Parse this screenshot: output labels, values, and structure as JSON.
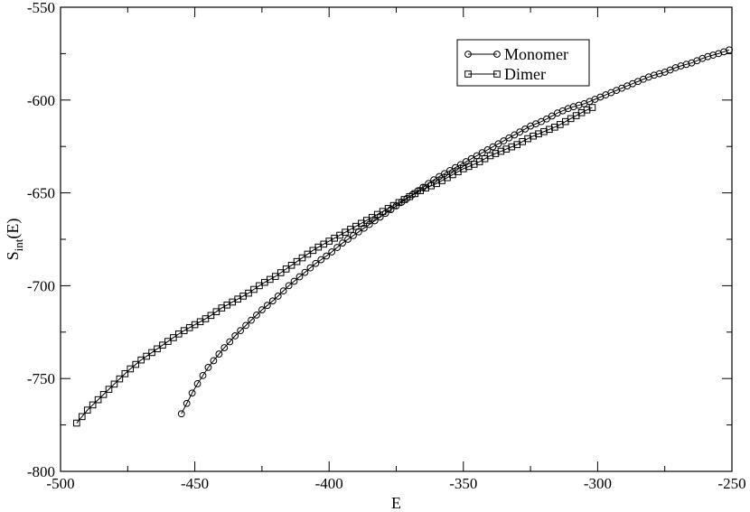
{
  "chart_data": {
    "type": "line",
    "title": "",
    "xlabel": "E",
    "ylabel": "S(E)",
    "ylabel_subscript": "int",
    "xlim": [
      -500,
      -250
    ],
    "ylim": [
      -800,
      -550
    ],
    "xticks": [
      -500,
      -450,
      -400,
      -350,
      -300,
      -250
    ],
    "yticks": [
      -800,
      -750,
      -700,
      -650,
      -600,
      -550
    ],
    "xtick_labels": [
      "-500",
      "-450",
      "-400",
      "-350",
      "-300",
      "-250"
    ],
    "ytick_labels": [
      "-800",
      "-750",
      "-700",
      "-650",
      "-600",
      "-550"
    ],
    "grid": false,
    "legend_position": "top-right",
    "series": [
      {
        "name": "Monomer",
        "marker": "circle",
        "x_start": -455,
        "x_end": -251,
        "x_step": 2,
        "x": [
          -455,
          -450,
          -445,
          -440,
          -435,
          -430,
          -425,
          -420,
          -415,
          -410,
          -405,
          -400,
          -395,
          -390,
          -385,
          -380,
          -375,
          -370,
          -365,
          -360,
          -355,
          -350,
          -345,
          -340,
          -335,
          -330,
          -325,
          -320,
          -315,
          -310,
          -305,
          -300,
          -295,
          -290,
          -285,
          -280,
          -275,
          -270,
          -265,
          -260,
          -255,
          -251
        ],
        "y": [
          -769,
          -755,
          -744,
          -735,
          -727,
          -720,
          -713,
          -707,
          -700,
          -694,
          -688,
          -683,
          -677,
          -672,
          -667,
          -662,
          -657,
          -652,
          -647,
          -642,
          -638,
          -634,
          -630,
          -626,
          -622,
          -618,
          -614,
          -611,
          -607,
          -604,
          -602,
          -599,
          -596,
          -593,
          -590,
          -587,
          -585,
          -582,
          -580,
          -577,
          -575,
          -573
        ]
      },
      {
        "name": "Dimer",
        "marker": "square",
        "x_start": -494,
        "x_end": -302,
        "x_step": 2,
        "x": [
          -494,
          -490,
          -485,
          -480,
          -475,
          -470,
          -465,
          -460,
          -455,
          -450,
          -445,
          -440,
          -435,
          -430,
          -425,
          -420,
          -415,
          -410,
          -405,
          -400,
          -395,
          -390,
          -385,
          -380,
          -375,
          -370,
          -365,
          -360,
          -355,
          -350,
          -345,
          -340,
          -335,
          -330,
          -325,
          -320,
          -315,
          -310,
          -305,
          -302
        ],
        "y": [
          -774,
          -767,
          -760,
          -753,
          -746,
          -740,
          -735,
          -730,
          -725,
          -721,
          -717,
          -712,
          -708,
          -704,
          -699,
          -695,
          -690,
          -685,
          -680,
          -676,
          -672,
          -668,
          -664,
          -660,
          -656,
          -652,
          -648,
          -645,
          -641,
          -637,
          -634,
          -630,
          -627,
          -624,
          -620,
          -617,
          -614,
          -610,
          -606,
          -604
        ]
      }
    ]
  }
}
